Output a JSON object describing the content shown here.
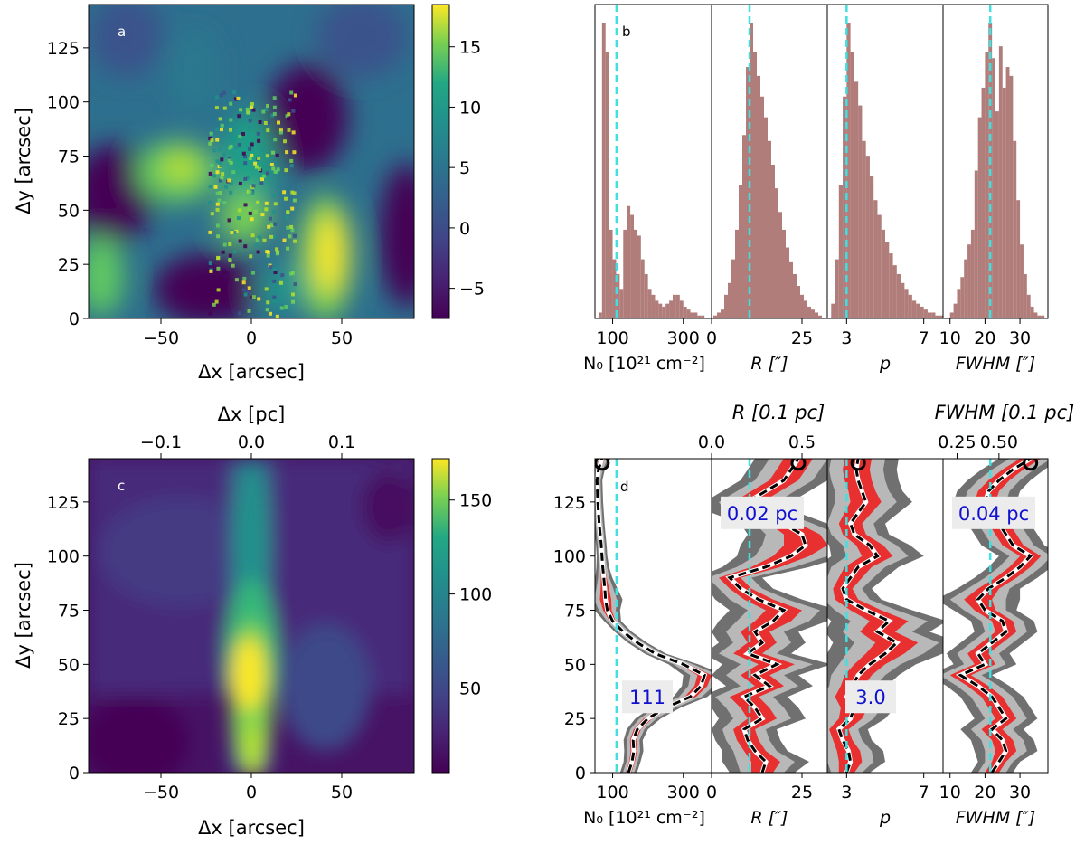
{
  "chart_data": [
    {
      "panel": "a",
      "type": "heatmap",
      "label": "a",
      "xlabel": "Δx [arcsec]",
      "ylabel": "Δy [arcsec]",
      "xlim": [
        -90,
        90
      ],
      "ylim": [
        0,
        145
      ],
      "xticks": [
        -50,
        0,
        50
      ],
      "yticks": [
        0,
        25,
        50,
        75,
        100,
        125
      ],
      "colorbar": {
        "range": [
          -7.5,
          18.5
        ],
        "ticks": [
          -5,
          0,
          5,
          10,
          15
        ]
      },
      "features": [
        {
          "x": -30,
          "y": 72,
          "level": 12
        },
        {
          "x": 45,
          "y": 40,
          "level": 18
        },
        {
          "x": 0,
          "y": 55,
          "level": 8
        },
        {
          "x": -80,
          "y": 20,
          "level": 8
        }
      ]
    },
    {
      "panel": "b",
      "type": "bar",
      "label": "b",
      "subpanels": [
        {
          "name": "N0",
          "xlabel": "N₀ [10²¹ cm⁻²]",
          "xticks": [
            "100",
            "300"
          ],
          "xlim": [
            50,
            380
          ],
          "xtick_values": [
            100,
            300
          ],
          "median": 111,
          "bins": [
            60,
            70,
            80,
            90,
            100,
            110,
            120,
            130,
            140,
            150,
            160,
            170,
            180,
            190,
            200,
            210,
            220,
            230,
            240,
            250,
            260,
            270,
            280,
            290,
            300,
            310,
            320,
            330,
            340,
            350,
            360
          ],
          "counts": [
            2,
            100,
            90,
            30,
            20,
            15,
            10,
            30,
            38,
            35,
            30,
            28,
            20,
            15,
            10,
            8,
            6,
            5,
            4,
            5,
            6,
            8,
            8,
            6,
            4,
            3,
            2,
            2,
            1,
            1
          ]
        },
        {
          "name": "R",
          "xlabel": "R [″]",
          "xticks": [
            "0",
            "25"
          ],
          "xlim": [
            0,
            32
          ],
          "xtick_values": [
            0,
            25
          ],
          "median": 10.5,
          "bins": [
            0.5,
            1.5,
            2.5,
            3.5,
            4.5,
            5.5,
            6.5,
            7.5,
            8.5,
            9.5,
            10.5,
            11.5,
            12.5,
            13.5,
            14.5,
            15.5,
            16.5,
            17.5,
            18.5,
            19.5,
            20.5,
            21.5,
            22.5,
            23.5,
            24.5,
            25.5,
            26.5,
            27.5,
            28.5,
            29.5,
            30.5
          ],
          "counts": [
            1,
            2,
            3,
            8,
            12,
            20,
            30,
            45,
            62,
            85,
            100,
            90,
            82,
            75,
            68,
            60,
            52,
            44,
            36,
            30,
            24,
            19,
            15,
            11,
            8,
            6,
            4,
            3,
            2,
            1
          ]
        },
        {
          "name": "p",
          "xlabel": "p",
          "xticks": [
            "3",
            "7"
          ],
          "xlim": [
            2,
            8
          ],
          "xtick_values": [
            3,
            7
          ],
          "median": 3.0,
          "bins": [
            2.2,
            2.4,
            2.6,
            2.8,
            3.0,
            3.2,
            3.4,
            3.6,
            3.8,
            4.0,
            4.2,
            4.4,
            4.6,
            4.8,
            5.0,
            5.2,
            5.4,
            5.6,
            5.8,
            6.0,
            6.2,
            6.4,
            6.6,
            6.8,
            7.0,
            7.2,
            7.4,
            7.6,
            7.8
          ],
          "counts": [
            5,
            20,
            45,
            75,
            100,
            90,
            80,
            72,
            60,
            55,
            48,
            40,
            35,
            30,
            26,
            22,
            18,
            15,
            12,
            10,
            8,
            6,
            5,
            4,
            3,
            2,
            2,
            1,
            1
          ]
        },
        {
          "name": "FWHM",
          "xlabel": "FWHM [″]",
          "xticks": [
            "10",
            "20",
            "30"
          ],
          "xlim": [
            8,
            38
          ],
          "xtick_values": [
            10,
            20,
            30
          ],
          "median": 21.5,
          "bins": [
            10,
            11,
            12,
            13,
            14,
            15,
            16,
            17,
            18,
            19,
            20,
            21,
            22,
            23,
            24,
            25,
            26,
            27,
            28,
            29,
            30,
            31,
            32,
            33,
            34,
            35,
            36
          ],
          "counts": [
            2,
            5,
            10,
            14,
            20,
            25,
            30,
            50,
            68,
            78,
            90,
            100,
            88,
            70,
            92,
            78,
            85,
            82,
            60,
            40,
            25,
            15,
            8,
            4,
            2,
            1,
            1
          ]
        }
      ]
    },
    {
      "panel": "c",
      "type": "heatmap",
      "label": "c",
      "xlabel": "Δx [arcsec]",
      "ylabel": "Δy [arcsec]",
      "top_xlabel": "Δx [pc]",
      "top_xticks": [
        "−0.1",
        "0.0",
        "0.1"
      ],
      "top_xtick_values": [
        -0.1,
        0.0,
        0.1
      ],
      "xlim": [
        -90,
        90
      ],
      "ylim": [
        0,
        145
      ],
      "xticks": [
        -50,
        0,
        50
      ],
      "yticks": [
        0,
        25,
        50,
        75,
        100,
        125
      ],
      "colorbar": {
        "range": [
          5,
          172
        ],
        "ticks": [
          50,
          100,
          150
        ]
      },
      "features": [
        {
          "x": 0,
          "y": 50,
          "level": 170
        },
        {
          "x": 0,
          "y": 100,
          "level": 90
        },
        {
          "x": 50,
          "y": 35,
          "level": 45
        }
      ]
    },
    {
      "panel": "d",
      "type": "line",
      "label": "d",
      "ylabel": "",
      "ylim": [
        0,
        145
      ],
      "yticks": [
        0,
        25,
        50,
        75,
        100,
        125
      ],
      "y": [
        0,
        5,
        10,
        15,
        20,
        25,
        30,
        35,
        40,
        45,
        50,
        55,
        60,
        65,
        70,
        75,
        80,
        85,
        90,
        95,
        100,
        105,
        110,
        115,
        120,
        125,
        130,
        135,
        140,
        145
      ],
      "subpanels": [
        {
          "name": "N0",
          "xlabel": "N₀ [10²¹ cm⁻²]",
          "xticks": [
            "100",
            "300"
          ],
          "xlim": [
            50,
            380
          ],
          "xtick_values": [
            100,
            300
          ],
          "median": 111,
          "annotation": "111",
          "annotation_y": 35,
          "profile": [
            145,
            155,
            160,
            158,
            170,
            200,
            250,
            320,
            350,
            360,
            300,
            220,
            170,
            130,
            100,
            85,
            80,
            78,
            75,
            72,
            70,
            68,
            65,
            62,
            60,
            58,
            57,
            56,
            60,
            70
          ],
          "spread": [
            8,
            8,
            9,
            9,
            10,
            12,
            14,
            16,
            18,
            20,
            14,
            10,
            9,
            8,
            8,
            12,
            16,
            12,
            8,
            6,
            5,
            5,
            5,
            5,
            5,
            5,
            5,
            5,
            6,
            8
          ]
        },
        {
          "name": "R",
          "xlabel": "R [″]",
          "top_xlabel": "R [0.1 pc]",
          "top_xticks": [
            "0.0",
            "0.5"
          ],
          "top_xtick_values": [
            0.0,
            0.5
          ],
          "xticks": [
            "0",
            "25"
          ],
          "xlim": [
            0,
            32
          ],
          "xtick_values": [
            0,
            25
          ],
          "median": 10.5,
          "annotation": "0.02 pc",
          "annotation_y": 120,
          "profile": [
            14,
            15,
            12,
            10,
            9,
            14,
            12,
            9,
            16,
            12,
            18,
            10,
            14,
            12,
            17,
            20,
            13,
            8,
            5,
            15,
            22,
            26,
            25,
            20,
            12,
            10,
            15,
            20,
            22,
            24
          ],
          "spread": [
            3,
            4,
            3,
            3,
            3,
            4,
            4,
            4,
            4,
            4,
            5,
            4,
            4,
            4,
            5,
            5,
            4,
            3,
            3,
            4,
            5,
            6,
            5,
            4,
            4,
            4,
            4,
            4,
            4,
            4
          ]
        },
        {
          "name": "p",
          "xlabel": "p",
          "xticks": [
            "3",
            "7"
          ],
          "xlim": [
            2,
            8
          ],
          "xtick_values": [
            3,
            7
          ],
          "median": 3.0,
          "annotation": "3.0",
          "annotation_y": 35,
          "profile": [
            3.0,
            3.2,
            3.1,
            2.8,
            2.6,
            3.2,
            3.4,
            3.0,
            3.3,
            3.6,
            4.2,
            5.0,
            5.6,
            4.6,
            5.2,
            4.0,
            3.0,
            2.8,
            3.2,
            3.6,
            4.6,
            4.2,
            3.4,
            3.2,
            3.6,
            4.0,
            3.8,
            3.6,
            3.5,
            3.6
          ],
          "spread": [
            0.4,
            0.6,
            0.6,
            0.5,
            0.5,
            0.6,
            0.7,
            0.6,
            0.6,
            0.7,
            0.8,
            1.0,
            1.1,
            0.9,
            1.0,
            0.8,
            0.6,
            0.5,
            0.6,
            0.7,
            0.8,
            0.7,
            0.6,
            0.6,
            0.7,
            0.8,
            0.7,
            0.7,
            0.7,
            0.7
          ]
        },
        {
          "name": "FWHM",
          "xlabel": "FWHM [″]",
          "top_xlabel": "FWHM [0.1 pc]",
          "top_xticks": [
            "0.25",
            "0.50"
          ],
          "top_xtick_values": [
            0.25,
            0.5
          ],
          "xticks": [
            "10",
            "20",
            "30"
          ],
          "xlim": [
            8,
            38
          ],
          "xtick_values": [
            10,
            20,
            30
          ],
          "median": 21.5,
          "annotation": "0.04 pc",
          "annotation_y": 120,
          "profile": [
            22,
            24,
            26,
            25,
            22,
            26,
            24,
            22,
            18,
            13,
            20,
            18,
            22,
            26,
            25,
            20,
            18,
            21,
            26,
            30,
            33,
            28,
            26,
            24,
            22,
            20,
            21,
            24,
            28,
            33
          ],
          "spread": [
            2,
            2,
            3,
            3,
            3,
            3,
            3,
            3,
            3,
            3,
            3,
            3,
            3,
            3,
            3,
            3,
            4,
            3,
            3,
            3,
            3,
            3,
            3,
            3,
            3,
            3,
            3,
            3,
            3,
            3
          ]
        }
      ]
    }
  ],
  "colors": {
    "histogram": "#b07d7a",
    "median_line": "#40e0e0",
    "profile_line": "#000000",
    "spread_outer": "#707070",
    "spread_mid": "#b8b8b8",
    "spread_inner": "#e83030",
    "annotation_text": "#1010d0",
    "annotation_bg": "#ececec"
  }
}
